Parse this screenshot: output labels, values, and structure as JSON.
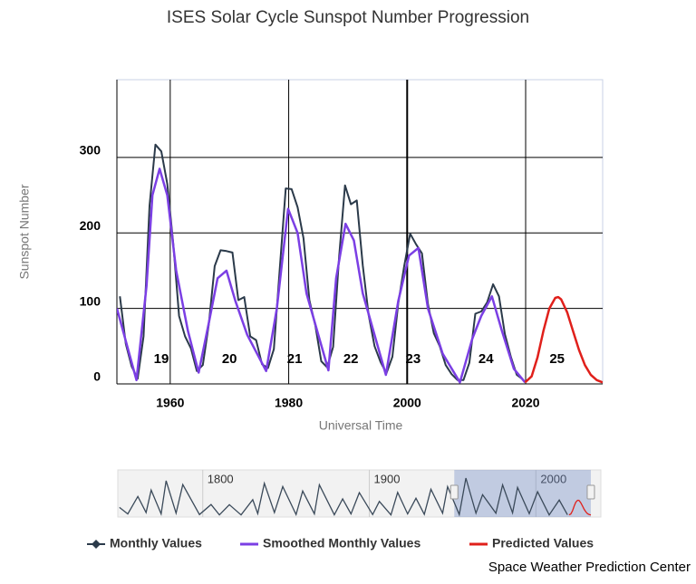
{
  "chart_data": {
    "type": "line",
    "title": "ISES Solar Cycle Sunspot Number Progression",
    "y_label": "Sunspot Number",
    "x_label": "Universal Time",
    "xlim": [
      1951,
      2033
    ],
    "ylim": [
      0,
      403
    ],
    "xticks": [
      1960,
      1980,
      2000,
      2020
    ],
    "yticks": [
      0,
      100,
      200,
      300
    ],
    "grid": true,
    "series": [
      {
        "name": "Monthly Values",
        "color": "#2b3a4a",
        "x": [
          1951.5,
          1952.5,
          1953.5,
          1954.5,
          1955.5,
          1956.5,
          1957.5,
          1958.5,
          1959.5,
          1960.5,
          1961.5,
          1962.5,
          1963.5,
          1964.5,
          1965.5,
          1966.5,
          1967.5,
          1968.5,
          1969.5,
          1970.5,
          1971.5,
          1972.5,
          1973.5,
          1974.5,
          1975.5,
          1976.5,
          1977.5,
          1978.5,
          1979.5,
          1980.5,
          1981.5,
          1982.5,
          1983.5,
          1984.5,
          1985.5,
          1986.5,
          1987.5,
          1988.5,
          1989.5,
          1990.5,
          1991.5,
          1992.5,
          1993.5,
          1994.5,
          1995.5,
          1996.5,
          1997.5,
          1998.5,
          1999.5,
          2000.5,
          2001.5,
          2002.5,
          2003.5,
          2004.5,
          2005.5,
          2006.5,
          2007.5,
          2008.5,
          2009.5,
          2010.5,
          2011.5,
          2012.5,
          2013.5,
          2014.5,
          2015.5,
          2016.5,
          2017.5,
          2018.5,
          2019.5
        ],
        "values": [
          116,
          53,
          23,
          7,
          63,
          236,
          317,
          308,
          265,
          187,
          90,
          63,
          47,
          17,
          25,
          78,
          156,
          177,
          176,
          174,
          111,
          115,
          63,
          58,
          26,
          21,
          46,
          154,
          259,
          258,
          234,
          193,
          111,
          77,
          30,
          22,
          49,
          167,
          263,
          238,
          243,
          157,
          91,
          50,
          29,
          14,
          36,
          107,
          156,
          199,
          185,
          173,
          106,
          67,
          50,
          25,
          13,
          5,
          5,
          28,
          93,
          96,
          108,
          132,
          116,
          66,
          36,
          12,
          6
        ]
      },
      {
        "name": "Smoothed Monthly Values",
        "color": "#7b3fe4",
        "x": [
          1951,
          1954.3,
          1956,
          1957,
          1958.2,
          1959.5,
          1961,
          1963,
          1964.8,
          1966.5,
          1968,
          1969.5,
          1971,
          1973,
          1976.2,
          1978,
          1979.9,
          1981.5,
          1983,
          1986.7,
          1988,
          1989.6,
          1991,
          1992.5,
          1996.4,
          1998.5,
          2000.3,
          2001.9,
          2003.5,
          2006,
          2008.9,
          2011,
          2012.5,
          2014.3,
          2016,
          2018,
          2019.9
        ],
        "values": [
          100,
          5,
          130,
          250,
          285,
          250,
          150,
          70,
          15,
          80,
          140,
          150,
          110,
          65,
          17,
          100,
          232,
          200,
          120,
          18,
          140,
          212,
          190,
          120,
          12,
          110,
          170,
          180,
          100,
          40,
          2,
          60,
          90,
          116,
          70,
          20,
          2
        ]
      },
      {
        "name": "Predicted Values",
        "color": "#e0201b",
        "x": [
          2019.9,
          2021,
          2022,
          2023,
          2024,
          2025,
          2025.5,
          2026,
          2027,
          2028,
          2029,
          2030,
          2031,
          2032,
          2033
        ],
        "values": [
          2,
          10,
          35,
          70,
          100,
          114,
          115,
          112,
          95,
          70,
          45,
          25,
          12,
          5,
          2
        ]
      }
    ],
    "cycle_labels": [
      {
        "text": "19",
        "x": 1958.5
      },
      {
        "text": "20",
        "x": 1970
      },
      {
        "text": "21",
        "x": 1981
      },
      {
        "text": "22",
        "x": 1990.5
      },
      {
        "text": "23",
        "x": 2001
      },
      {
        "text": "24",
        "x": 2013.3
      },
      {
        "text": "25",
        "x": 2025.3
      }
    ],
    "navigator": {
      "xlim": [
        1749,
        2039
      ],
      "ylim": [
        0,
        320
      ],
      "xticks": [
        1800,
        1900,
        2000
      ],
      "series": [
        {
          "color": "#3b4a5a",
          "x": [
            1750,
            1755,
            1761,
            1766,
            1769,
            1775,
            1778,
            1784,
            1788,
            1798,
            1805,
            1810,
            1816,
            1823,
            1830,
            1833,
            1837,
            1843,
            1848,
            1856,
            1860,
            1867,
            1870,
            1879,
            1884,
            1889,
            1894,
            1902,
            1906,
            1913,
            1917,
            1923,
            1928,
            1933,
            1937,
            1944,
            1947,
            1954,
            1958,
            1964,
            1968,
            1976,
            1980,
            1986,
            1989,
            1996,
            2001,
            2008,
            2014,
            2019
          ],
          "values": [
            60,
            10,
            144,
            20,
            193,
            10,
            264,
            15,
            235,
            5,
            82,
            2,
            81,
            2,
            119,
            12,
            245,
            20,
            220,
            5,
            186,
            10,
            234,
            3,
            125,
            10,
            173,
            5,
            106,
            2,
            175,
            10,
            130,
            6,
            199,
            15,
            219,
            5,
            285,
            15,
            157,
            15,
            233,
            18,
            213,
            12,
            180,
            2,
            116,
            3
          ]
        }
      ]
    },
    "footer": "Space Weather Prediction Center"
  }
}
